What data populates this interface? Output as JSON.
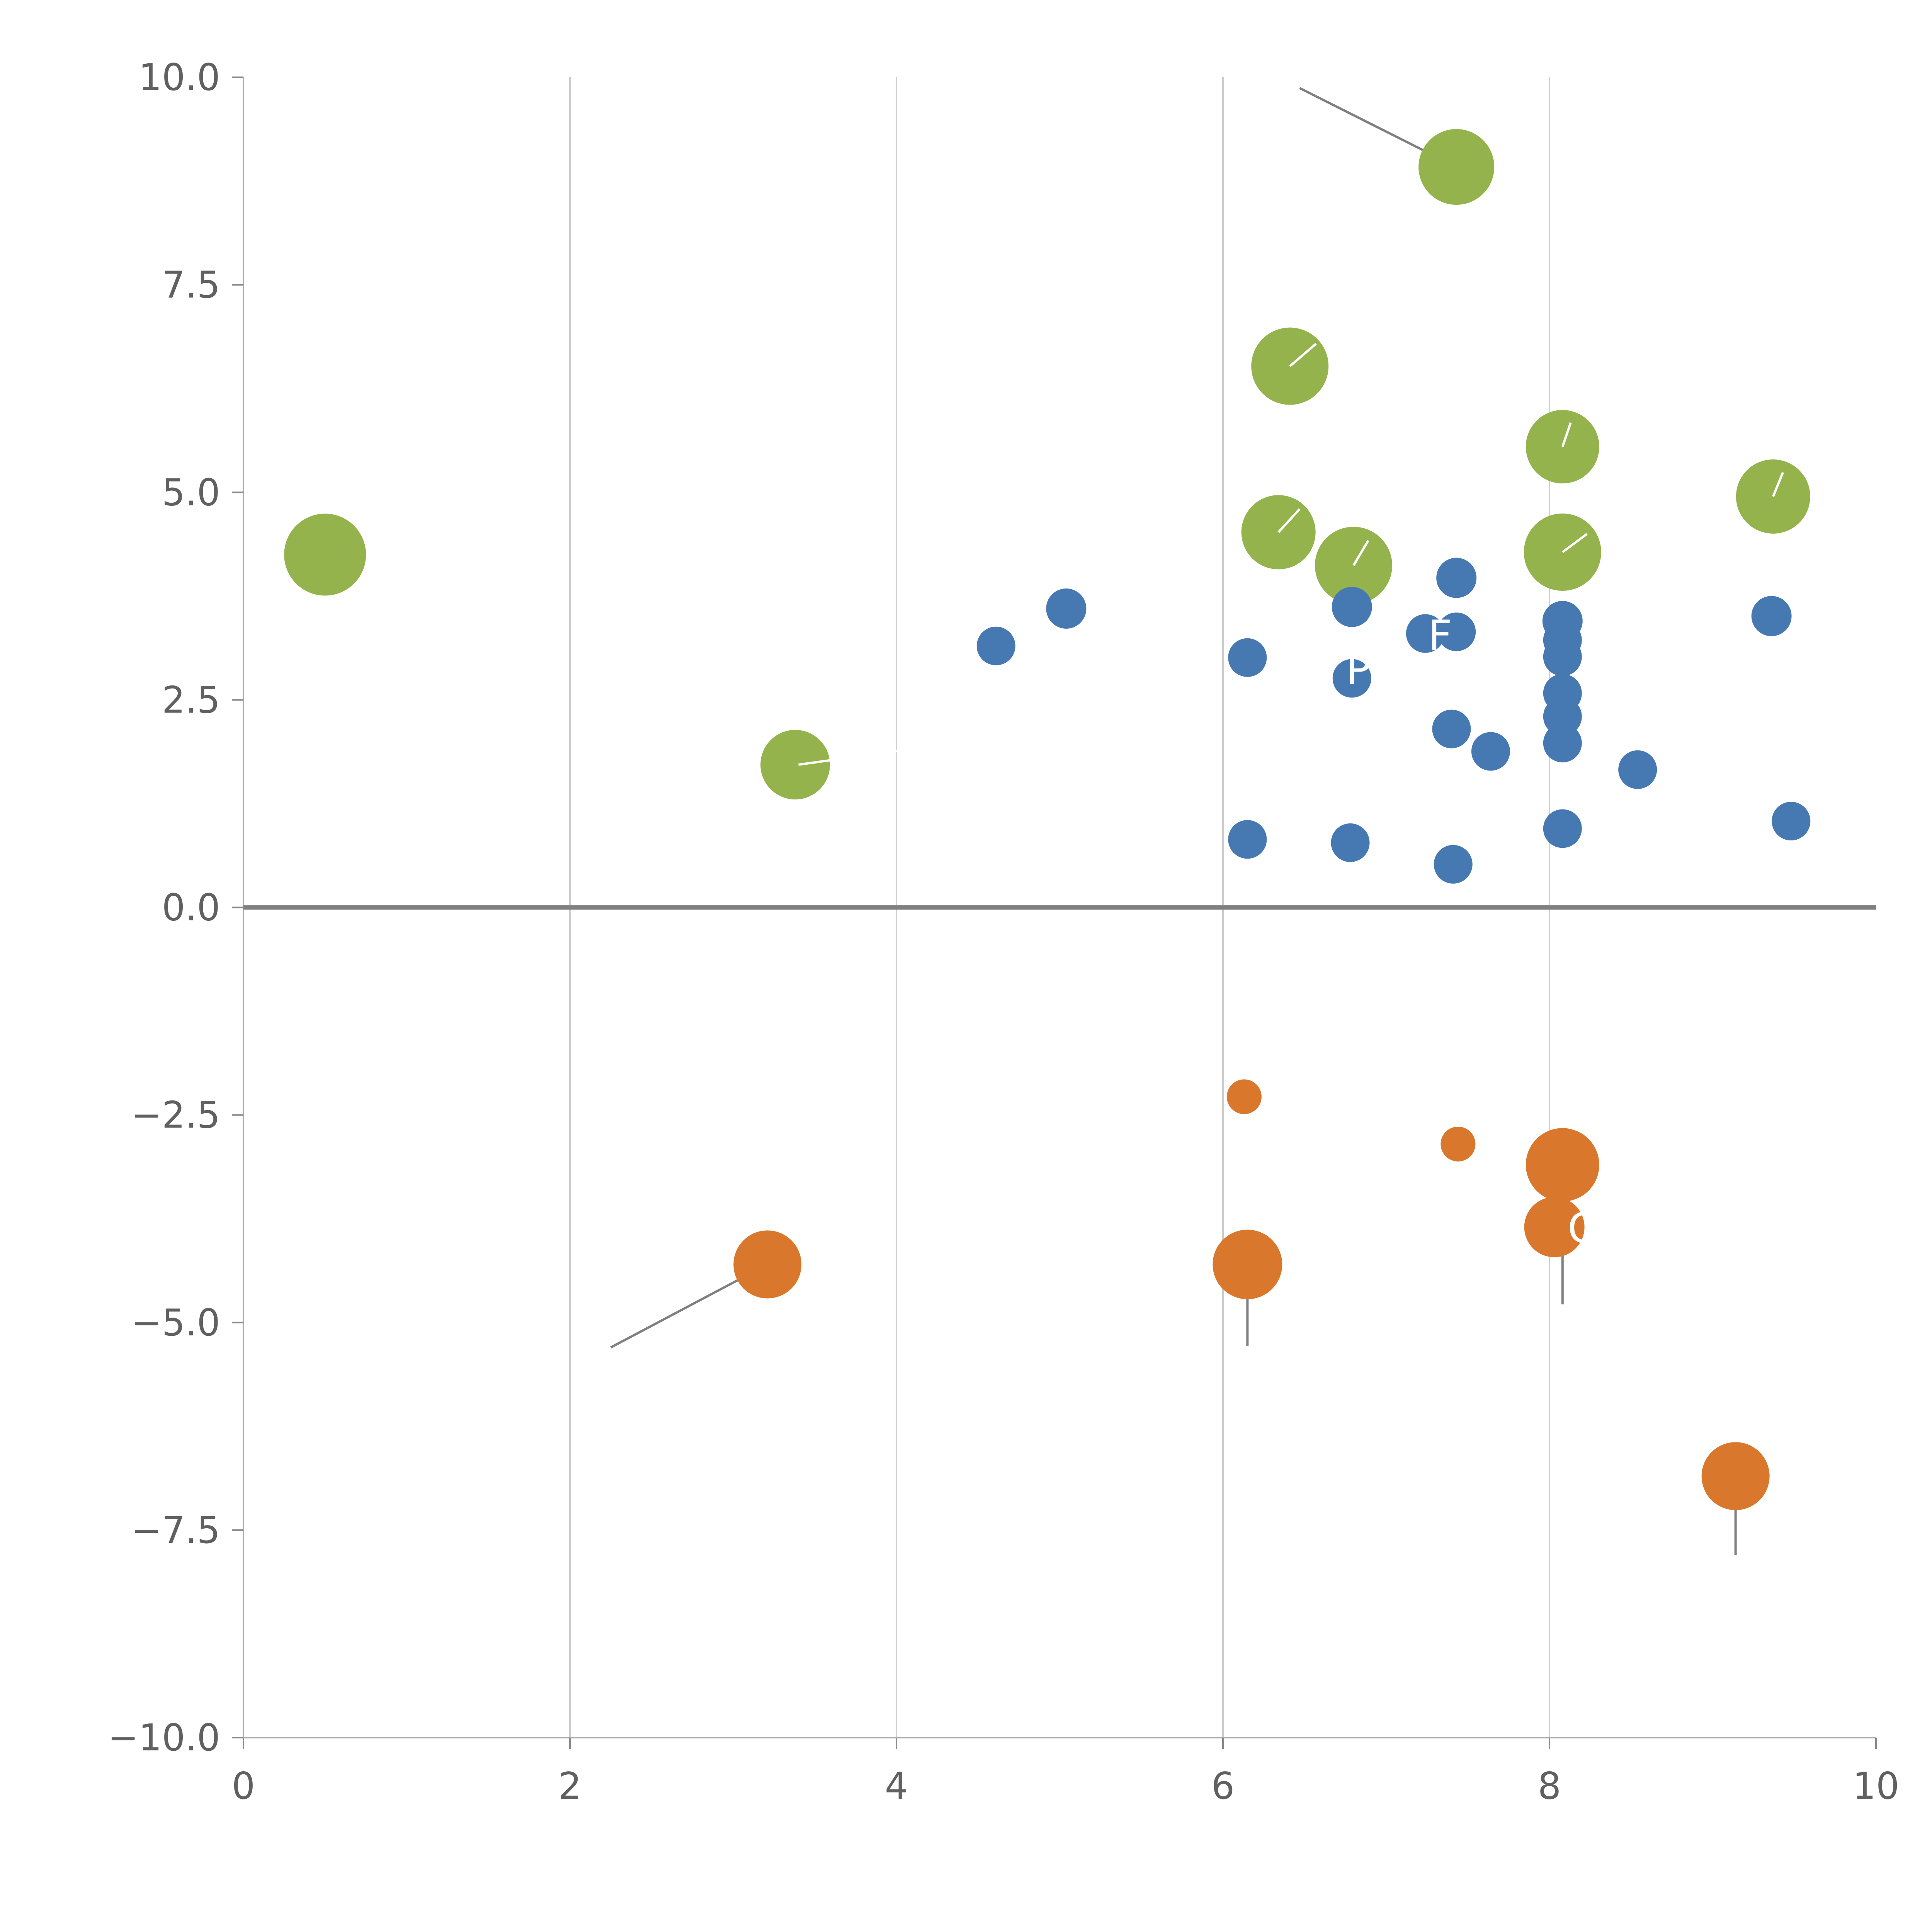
{
  "figure": {
    "background": "#ffffff"
  },
  "chart_data": {
    "type": "scatter",
    "title": "",
    "xlabel": "",
    "ylabel": "",
    "xlim": [
      0,
      10
    ],
    "ylim": [
      -10,
      10
    ],
    "grid": true,
    "legend": "none",
    "x_ticks": {
      "values": [
        0,
        2,
        4,
        6,
        8,
        10
      ],
      "labels": [
        "0",
        "2",
        "4",
        "6",
        "8",
        "10"
      ]
    },
    "y_ticks": {
      "values": [
        10,
        7.5,
        5,
        2.5,
        0,
        -2.5,
        -5,
        -7.5,
        -10
      ],
      "labels": [
        "10.0",
        "7.5",
        "5.0",
        "2.5",
        "0.0",
        "−2.5",
        "−5.0",
        "−7.5",
        "−10.0"
      ]
    },
    "gridline_x_values": [
      2,
      4,
      6,
      8
    ],
    "zero_line_y": 0,
    "colors": {
      "grid": "#cccccc",
      "spine": "#aaaaaa",
      "tick": "#8a8a8a",
      "tick_label": "#606060",
      "zero_line": "#808080",
      "connector": "#7f7f7f",
      "marker_hand": "#ffffff",
      "label_text": "#ffffff"
    },
    "series": [
      {
        "name": "green",
        "color": "#95b34c",
        "points": [
          {
            "x": 0.5,
            "y": 4.25,
            "r": 106
          },
          {
            "x": 3.38,
            "y": 1.72,
            "r": 90
          },
          {
            "x": 6.41,
            "y": 6.52,
            "r": 100
          },
          {
            "x": 6.34,
            "y": 4.52,
            "r": 96
          },
          {
            "x": 6.8,
            "y": 4.12,
            "r": 100
          },
          {
            "x": 7.43,
            "y": 8.92,
            "r": 98
          },
          {
            "x": 8.08,
            "y": 5.55,
            "r": 95
          },
          {
            "x": 8.08,
            "y": 4.28,
            "r": 100
          },
          {
            "x": 9.37,
            "y": 4.95,
            "r": 96
          }
        ]
      },
      {
        "name": "blue",
        "color": "#4678b2",
        "points": [
          {
            "x": 4.61,
            "y": 3.15,
            "r": 50
          },
          {
            "x": 5.04,
            "y": 3.6,
            "r": 52
          },
          {
            "x": 6.15,
            "y": 3.01,
            "r": 50
          },
          {
            "x": 6.15,
            "y": 0.82,
            "r": 50
          },
          {
            "x": 6.79,
            "y": 3.62,
            "r": 52
          },
          {
            "x": 6.79,
            "y": 2.76,
            "r": 50
          },
          {
            "x": 6.78,
            "y": 0.78,
            "r": 50
          },
          {
            "x": 7.24,
            "y": 3.3,
            "r": 50
          },
          {
            "x": 7.43,
            "y": 3.97,
            "r": 52
          },
          {
            "x": 7.43,
            "y": 3.32,
            "r": 50
          },
          {
            "x": 7.4,
            "y": 2.15,
            "r": 50
          },
          {
            "x": 7.41,
            "y": 0.52,
            "r": 50
          },
          {
            "x": 7.64,
            "y": 1.88,
            "r": 50
          },
          {
            "x": 8.08,
            "y": 3.45,
            "r": 52
          },
          {
            "x": 8.08,
            "y": 3.22,
            "r": 50
          },
          {
            "x": 8.08,
            "y": 3.02,
            "r": 50
          },
          {
            "x": 8.08,
            "y": 2.58,
            "r": 50
          },
          {
            "x": 8.08,
            "y": 2.3,
            "r": 50
          },
          {
            "x": 8.08,
            "y": 1.98,
            "r": 50
          },
          {
            "x": 8.08,
            "y": 0.95,
            "r": 50
          },
          {
            "x": 8.54,
            "y": 1.66,
            "r": 50
          },
          {
            "x": 9.36,
            "y": 3.51,
            "r": 52
          },
          {
            "x": 9.48,
            "y": 1.04,
            "r": 50
          }
        ]
      },
      {
        "name": "orange",
        "color": "#d9782c",
        "points": [
          {
            "x": 3.21,
            "y": -4.3,
            "r": 88
          },
          {
            "x": 6.13,
            "y": -2.28,
            "r": 45
          },
          {
            "x": 6.15,
            "y": -4.3,
            "r": 90
          },
          {
            "x": 7.44,
            "y": -2.85,
            "r": 45
          },
          {
            "x": 8.08,
            "y": -3.1,
            "r": 95
          },
          {
            "x": 8.03,
            "y": -3.85,
            "r": 78
          },
          {
            "x": 9.14,
            "y": -6.85,
            "r": 88
          }
        ]
      }
    ],
    "connector_lines": [
      {
        "x1": 6.47,
        "y1": 9.87,
        "x2": 7.43,
        "y2": 8.92
      },
      {
        "x1": 2.25,
        "y1": -5.3,
        "x2": 3.21,
        "y2": -4.3
      },
      {
        "x1": 6.15,
        "y1": -4.3,
        "x2": 6.15,
        "y2": -5.28
      },
      {
        "x1": 8.08,
        "y1": -3.1,
        "x2": 8.08,
        "y2": -4.78
      },
      {
        "x1": 9.14,
        "y1": -6.85,
        "x2": 9.14,
        "y2": -7.8
      }
    ],
    "marker_hand_lines": [
      {
        "x1": 3.4,
        "y1": 1.72,
        "x2": 4.06,
        "y2": 1.9
      },
      {
        "x1": 6.41,
        "y1": 6.52,
        "x2": 6.57,
        "y2": 6.79
      },
      {
        "x1": 6.34,
        "y1": 4.52,
        "x2": 6.47,
        "y2": 4.8
      },
      {
        "x1": 6.8,
        "y1": 4.12,
        "x2": 6.89,
        "y2": 4.42
      },
      {
        "x1": 8.08,
        "y1": 5.55,
        "x2": 8.13,
        "y2": 5.84
      },
      {
        "x1": 8.08,
        "y1": 4.28,
        "x2": 8.23,
        "y2": 4.5
      },
      {
        "x1": 9.37,
        "y1": 4.95,
        "x2": 9.43,
        "y2": 5.24
      },
      {
        "x1": 8.04,
        "y1": 7.6,
        "x2": 8.07,
        "y2": 7.02
      }
    ],
    "point_labels": [
      {
        "x": 7.33,
        "y": 3.28,
        "text": "F"
      },
      {
        "x": 6.83,
        "y": 2.87,
        "text": "P"
      },
      {
        "x": 8.2,
        "y": -3.86,
        "text": "C"
      }
    ]
  }
}
